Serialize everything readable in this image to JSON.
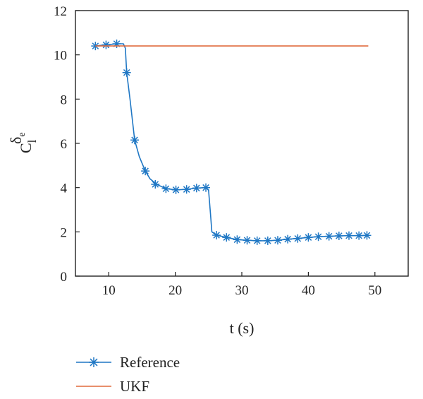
{
  "chart_data": {
    "type": "line",
    "xlabel": "t (s)",
    "ylabel": {
      "base": "C",
      "sub": "l",
      "sup": "δ",
      "supsub": "e"
    },
    "xlim": [
      5,
      55
    ],
    "ylim": [
      0,
      12
    ],
    "xticks": [
      10,
      20,
      30,
      40,
      50
    ],
    "yticks": [
      0,
      2,
      4,
      6,
      8,
      10,
      12
    ],
    "grid": false,
    "legend_position": "bottom-left, outside plot",
    "series": [
      {
        "name": "Reference",
        "color": "#1f77c4",
        "marker": "asterisk",
        "x": [
          8.0,
          9.6,
          11.2,
          12.2,
          12.5,
          12.7,
          13.2,
          13.9,
          14.6,
          15.5,
          16.2,
          17.2,
          18.6,
          20.1,
          21.7,
          23.2,
          24.6,
          25.0,
          25.3,
          25.5,
          26.2,
          27.7,
          29.3,
          30.8,
          32.3,
          33.9,
          35.4,
          36.9,
          38.4,
          40.0,
          41.5,
          43.1,
          44.6,
          46.1,
          47.6,
          48.8
        ],
        "y": [
          10.4,
          10.45,
          10.5,
          10.5,
          10.3,
          9.2,
          8.0,
          6.15,
          5.4,
          4.75,
          4.4,
          4.15,
          3.95,
          3.9,
          3.92,
          3.98,
          4.0,
          3.9,
          2.8,
          2.0,
          1.85,
          1.75,
          1.65,
          1.62,
          1.6,
          1.6,
          1.62,
          1.67,
          1.7,
          1.75,
          1.78,
          1.8,
          1.82,
          1.83,
          1.83,
          1.84
        ],
        "marker_x": [
          8.0,
          9.6,
          11.2,
          12.7,
          13.9,
          15.5,
          17.0,
          18.6,
          20.1,
          21.7,
          23.2,
          24.6,
          26.2,
          27.7,
          29.3,
          30.8,
          32.3,
          33.9,
          35.4,
          36.9,
          38.4,
          40.0,
          41.5,
          43.1,
          44.6,
          46.1,
          47.6,
          48.8
        ],
        "marker_y": [
          10.4,
          10.45,
          10.5,
          9.2,
          6.15,
          4.75,
          4.15,
          3.95,
          3.9,
          3.92,
          3.98,
          4.0,
          1.85,
          1.75,
          1.65,
          1.62,
          1.6,
          1.6,
          1.62,
          1.67,
          1.7,
          1.75,
          1.78,
          1.8,
          1.82,
          1.83,
          1.83,
          1.84
        ]
      },
      {
        "name": "UKF",
        "color": "#e06a3b",
        "marker": "none",
        "x": [
          8.0,
          49.0
        ],
        "y": [
          10.4,
          10.4
        ]
      }
    ]
  }
}
